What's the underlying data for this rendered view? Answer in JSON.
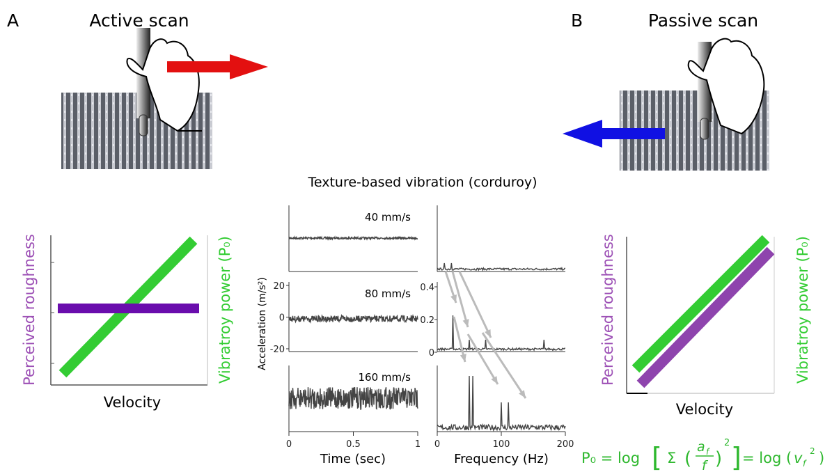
{
  "panel_a": {
    "letter": "A",
    "title": "Active scan",
    "y_label_left": "Perceived roughness",
    "y_label_right": "Vibratroy power (P₀)",
    "x_label": "Velocity"
  },
  "panel_b": {
    "letter": "B",
    "title": "Passive scan",
    "y_label_left": "Perceived roughness",
    "y_label_right": "Vibratroy power (P₀)",
    "x_label": "Velocity"
  },
  "vibration": {
    "title": "Texture-based vibration (corduroy)",
    "speeds": [
      "40 mm/s",
      "80 mm/s",
      "160 mm/s"
    ],
    "y_label": "Acceleration (m/s²)",
    "time": {
      "x_label": "Time (sec)",
      "xlim": [
        0,
        1
      ],
      "xticks": [
        0,
        0.5,
        1
      ],
      "ylim": [
        -20,
        20
      ],
      "yticks": [
        20,
        0,
        -20
      ]
    },
    "frequency": {
      "x_label": "Frequency (Hz)",
      "xlim": [
        0,
        200
      ],
      "xticks": [
        0,
        100,
        200
      ],
      "ylim": [
        0,
        0.4
      ],
      "yticks": [
        0.4,
        0.2,
        0
      ]
    }
  },
  "formula": [
    "P₀ = log",
    "[",
    "Σ",
    "(",
    "a",
    "f",
    "f",
    ")",
    "2",
    "]",
    "= log (",
    "v",
    "f",
    "2",
    ")"
  ]
}
